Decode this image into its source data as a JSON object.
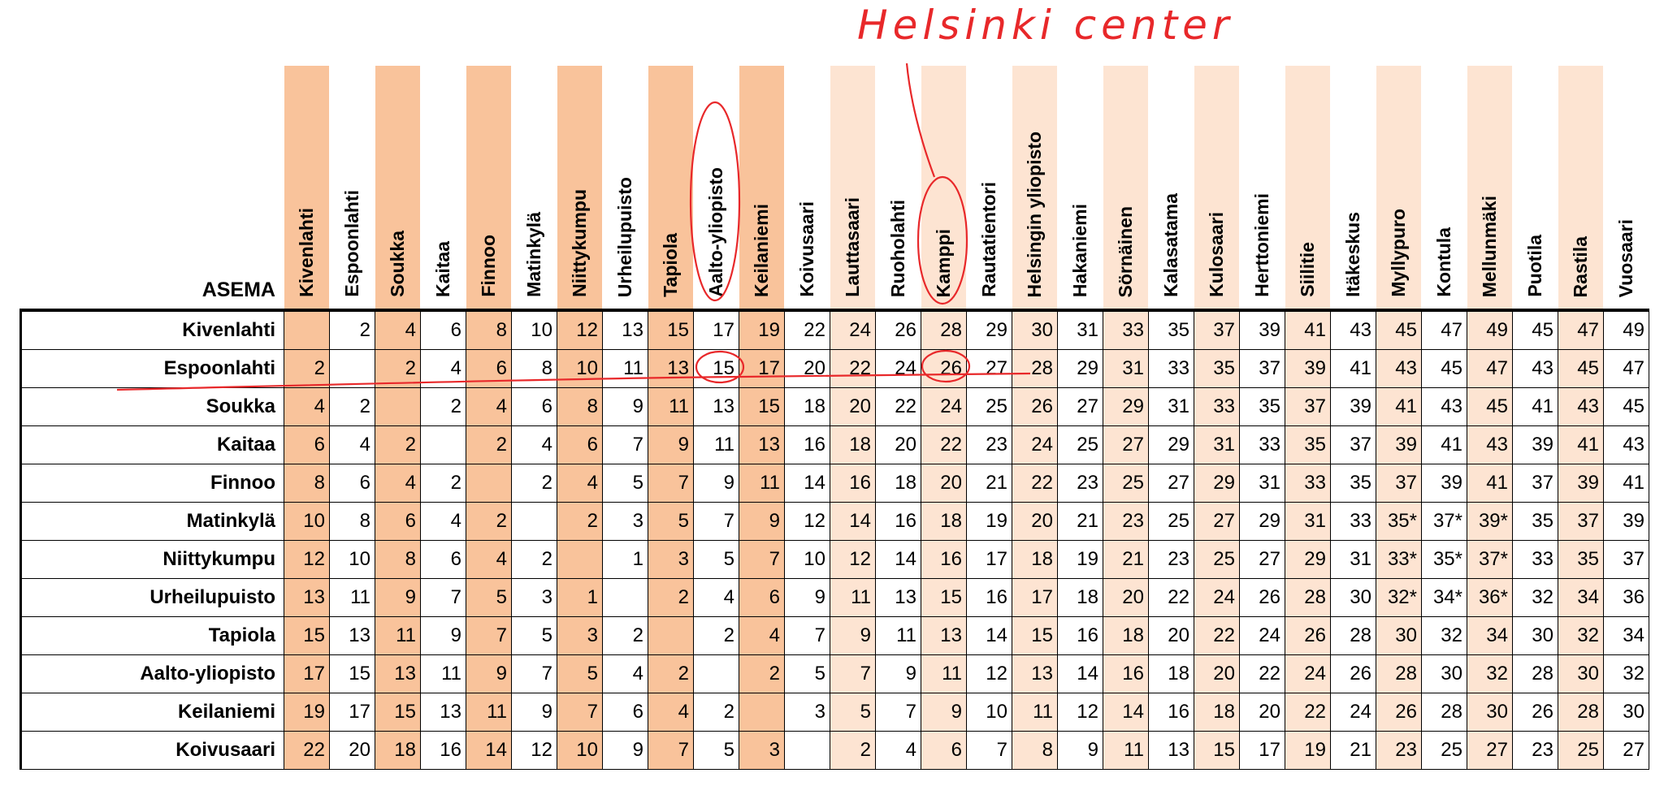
{
  "header": {
    "title": "ASEMA"
  },
  "annotation": "Helsinki center",
  "columns": [
    "Kivenlahti",
    "Espoonlahti",
    "Soukka",
    "Kaitaa",
    "Finnoo",
    "Matinkylä",
    "Niittykumpu",
    "Urheilupuisto",
    "Tapiola",
    "Aalto-yliopisto",
    "Keilaniemi",
    "Koivusaari",
    "Lauttasaari",
    "Ruoholahti",
    "Kamppi",
    "Rautatientori",
    "Helsingin yliopisto",
    "Hakaniemi",
    "Sörnäinen",
    "Kalasatama",
    "Kulosaari",
    "Herttoniemi",
    "Siilitie",
    "Itäkeskus",
    "Myllypuro",
    "Kontula",
    "Mellunmäki",
    "Puotila",
    "Rastila",
    "Vuosaari"
  ],
  "rows": [
    {
      "station": "Kivenlahti",
      "cells": [
        null,
        "2",
        "4",
        "6",
        "8",
        "10",
        "12",
        "13",
        "15",
        "17",
        "19",
        "22",
        "24",
        "26",
        "28",
        "29",
        "30",
        "31",
        "33",
        "35",
        "37",
        "39",
        "41",
        "43",
        "45",
        "47",
        "49",
        "45",
        "47",
        "49"
      ]
    },
    {
      "station": "Espoonlahti",
      "cells": [
        "2",
        null,
        "2",
        "4",
        "6",
        "8",
        "10",
        "11",
        "13",
        "15",
        "17",
        "20",
        "22",
        "24",
        "26",
        "27",
        "28",
        "29",
        "31",
        "33",
        "35",
        "37",
        "39",
        "41",
        "43",
        "45",
        "47",
        "43",
        "45",
        "47"
      ]
    },
    {
      "station": "Soukka",
      "cells": [
        "4",
        "2",
        null,
        "2",
        "4",
        "6",
        "8",
        "9",
        "11",
        "13",
        "15",
        "18",
        "20",
        "22",
        "24",
        "25",
        "26",
        "27",
        "29",
        "31",
        "33",
        "35",
        "37",
        "39",
        "41",
        "43",
        "45",
        "41",
        "43",
        "45"
      ]
    },
    {
      "station": "Kaitaa",
      "cells": [
        "6",
        "4",
        "2",
        null,
        "2",
        "4",
        "6",
        "7",
        "9",
        "11",
        "13",
        "16",
        "18",
        "20",
        "22",
        "23",
        "24",
        "25",
        "27",
        "29",
        "31",
        "33",
        "35",
        "37",
        "39",
        "41",
        "43",
        "39",
        "41",
        "43"
      ]
    },
    {
      "station": "Finnoo",
      "cells": [
        "8",
        "6",
        "4",
        "2",
        null,
        "2",
        "4",
        "5",
        "7",
        "9",
        "11",
        "14",
        "16",
        "18",
        "20",
        "21",
        "22",
        "23",
        "25",
        "27",
        "29",
        "31",
        "33",
        "35",
        "37",
        "39",
        "41",
        "37",
        "39",
        "41"
      ]
    },
    {
      "station": "Matinkylä",
      "cells": [
        "10",
        "8",
        "6",
        "4",
        "2",
        null,
        "2",
        "3",
        "5",
        "7",
        "9",
        "12",
        "14",
        "16",
        "18",
        "19",
        "20",
        "21",
        "23",
        "25",
        "27",
        "29",
        "31",
        "33",
        "35*",
        "37*",
        "39*",
        "35",
        "37",
        "39"
      ]
    },
    {
      "station": "Niittykumpu",
      "cells": [
        "12",
        "10",
        "8",
        "6",
        "4",
        "2",
        null,
        "1",
        "3",
        "5",
        "7",
        "10",
        "12",
        "14",
        "16",
        "17",
        "18",
        "19",
        "21",
        "23",
        "25",
        "27",
        "29",
        "31",
        "33*",
        "35*",
        "37*",
        "33",
        "35",
        "37"
      ]
    },
    {
      "station": "Urheilupuisto",
      "cells": [
        "13",
        "11",
        "9",
        "7",
        "5",
        "3",
        "1",
        null,
        "2",
        "4",
        "6",
        "9",
        "11",
        "13",
        "15",
        "16",
        "17",
        "18",
        "20",
        "22",
        "24",
        "26",
        "28",
        "30",
        "32*",
        "34*",
        "36*",
        "32",
        "34",
        "36"
      ]
    },
    {
      "station": "Tapiola",
      "cells": [
        "15",
        "13",
        "11",
        "9",
        "7",
        "5",
        "3",
        "2",
        null,
        "2",
        "4",
        "7",
        "9",
        "11",
        "13",
        "14",
        "15",
        "16",
        "18",
        "20",
        "22",
        "24",
        "26",
        "28",
        "30",
        "32",
        "34",
        "30",
        "32",
        "34"
      ]
    },
    {
      "station": "Aalto-yliopisto",
      "cells": [
        "17",
        "15",
        "13",
        "11",
        "9",
        "7",
        "5",
        "4",
        "2",
        null,
        "2",
        "5",
        "7",
        "9",
        "11",
        "12",
        "13",
        "14",
        "16",
        "18",
        "20",
        "22",
        "24",
        "26",
        "28",
        "30",
        "32",
        "28",
        "30",
        "32"
      ]
    },
    {
      "station": "Keilaniemi",
      "cells": [
        "19",
        "17",
        "15",
        "13",
        "11",
        "9",
        "7",
        "6",
        "4",
        "2",
        null,
        "3",
        "5",
        "7",
        "9",
        "10",
        "11",
        "12",
        "14",
        "16",
        "18",
        "20",
        "22",
        "24",
        "26",
        "28",
        "30",
        "26",
        "28",
        "30"
      ]
    },
    {
      "station": "Koivusaari",
      "cells": [
        "22",
        "20",
        "18",
        "16",
        "14",
        "12",
        "10",
        "9",
        "7",
        "5",
        "3",
        null,
        "2",
        "4",
        "6",
        "7",
        "8",
        "9",
        "11",
        "13",
        "15",
        "17",
        "19",
        "21",
        "23",
        "25",
        "27",
        "23",
        "25",
        "27"
      ]
    }
  ]
}
